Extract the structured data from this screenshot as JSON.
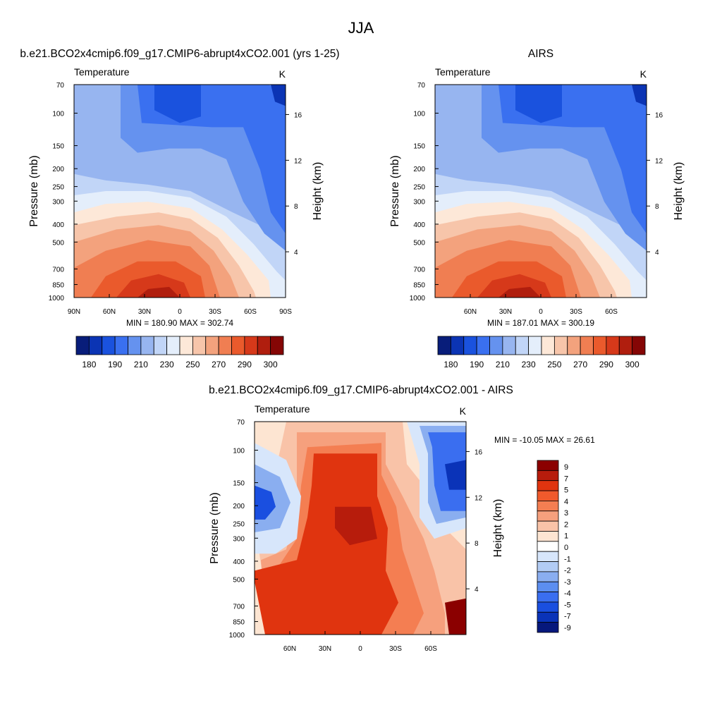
{
  "page_title": "JJA",
  "chart_data": [
    {
      "type": "heatmap",
      "title": "b.e21.BCO2x4cmip6.f09_g17.CMIP6-abrupt4xCO2.001 (yrs 1-25)",
      "left_label": "Temperature",
      "units": "K",
      "ylabel": "Pressure (mb)",
      "y2label": "Height (km)",
      "y_ticks": [
        70,
        100,
        150,
        200,
        250,
        300,
        400,
        500,
        700,
        850,
        1000
      ],
      "y2_ticks": [
        16,
        12,
        8,
        4
      ],
      "x_ticks": [
        "90N",
        "60N",
        "30N",
        "0",
        "30S",
        "60S",
        "90S"
      ],
      "x_range": [
        90,
        -90
      ],
      "min_max": "MIN = 180.90  MAX = 302.74",
      "colorbar": {
        "orientation": "horizontal",
        "colors": [
          "#081d7a",
          "#0b34b4",
          "#1a52de",
          "#3a70f0",
          "#6592ef",
          "#97b5f0",
          "#c1d5f7",
          "#e4eefb",
          "#fde8d8",
          "#f7c5aa",
          "#f3a27d",
          "#f07e52",
          "#ea5a2c",
          "#d6391a",
          "#b01e0e",
          "#850605"
        ],
        "labels": [
          "180",
          "190",
          "210",
          "230",
          "250",
          "270",
          "290",
          "300"
        ]
      }
    },
    {
      "type": "heatmap",
      "title": "AIRS",
      "left_label": "Temperature",
      "units": "K",
      "ylabel": "Pressure (mb)",
      "y2label": "Height (km)",
      "y_ticks": [
        70,
        100,
        150,
        200,
        250,
        300,
        400,
        500,
        700,
        850,
        1000
      ],
      "y2_ticks": [
        16,
        12,
        8,
        4
      ],
      "x_ticks": [
        "60N",
        "30N",
        "0",
        "30S",
        "60S"
      ],
      "x_range": [
        90,
        -90
      ],
      "min_max": "MIN = 187.01  MAX = 300.19",
      "colorbar": {
        "orientation": "horizontal",
        "colors": [
          "#081d7a",
          "#0b34b4",
          "#1a52de",
          "#3a70f0",
          "#6592ef",
          "#97b5f0",
          "#c1d5f7",
          "#e4eefb",
          "#fde8d8",
          "#f7c5aa",
          "#f3a27d",
          "#f07e52",
          "#ea5a2c",
          "#d6391a",
          "#b01e0e",
          "#850605"
        ],
        "labels": [
          "180",
          "190",
          "210",
          "230",
          "250",
          "270",
          "290",
          "300"
        ]
      }
    },
    {
      "type": "heatmap",
      "title": "b.e21.BCO2x4cmip6.f09_g17.CMIP6-abrupt4xCO2.001 - AIRS",
      "left_label": "Temperature",
      "units": "K",
      "ylabel": "Pressure (mb)",
      "y2label": "Height (km)",
      "y_ticks": [
        70,
        100,
        150,
        200,
        250,
        300,
        400,
        500,
        700,
        850,
        1000
      ],
      "y2_ticks": [
        16,
        12,
        8,
        4
      ],
      "x_ticks": [
        "60N",
        "30N",
        "0",
        "30S",
        "60S"
      ],
      "x_range": [
        90,
        -90
      ],
      "min_max": "MIN = -10.05  MAX =  26.61",
      "colorbar": {
        "orientation": "vertical",
        "colors": [
          "#8b0000",
          "#b71c0c",
          "#e0340f",
          "#f05a2c",
          "#f47e52",
          "#f6a07d",
          "#f9c3a8",
          "#fde5d2",
          "#ffffff",
          "#d7e6fb",
          "#b2ccf4",
          "#8aaef0",
          "#5c8ef0",
          "#3a6ef0",
          "#1a4fe0",
          "#0a33b8",
          "#06187c"
        ],
        "labels": [
          "9",
          "7",
          "5",
          "4",
          "3",
          "2",
          "1",
          "0",
          "-1",
          "-2",
          "-3",
          "-4",
          "-5",
          "-7",
          "-9"
        ]
      }
    }
  ]
}
